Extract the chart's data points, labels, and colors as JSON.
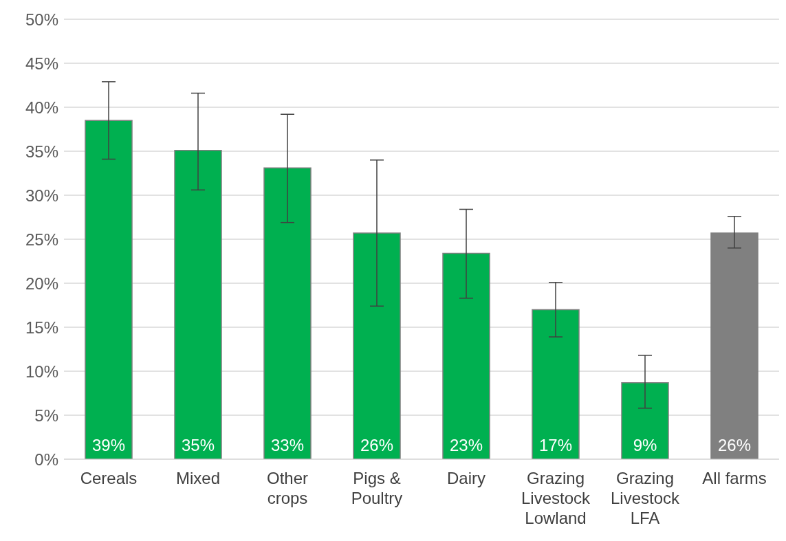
{
  "chart_data": {
    "type": "bar",
    "categories": [
      "Cereals",
      "Mixed",
      "Other crops",
      "Pigs & Poultry",
      "Dairy",
      "Grazing Livestock Lowland",
      "Grazing Livestock LFA",
      "All farms"
    ],
    "values": [
      38.5,
      35.1,
      33.1,
      25.7,
      23.4,
      17.0,
      8.7,
      25.7
    ],
    "errors": [
      [
        34.1,
        42.9
      ],
      [
        30.6,
        41.6
      ],
      [
        26.9,
        39.2
      ],
      [
        17.4,
        34.0
      ],
      [
        18.3,
        28.4
      ],
      [
        13.9,
        20.1
      ],
      [
        5.8,
        11.8
      ],
      [
        24.0,
        27.6
      ]
    ],
    "colors": [
      "#00b050",
      "#00b050",
      "#00b050",
      "#00b050",
      "#00b050",
      "#00b050",
      "#00b050",
      "#808080"
    ],
    "value_labels": [
      "39%",
      "35%",
      "33%",
      "26%",
      "23%",
      "17%",
      "9%",
      "26%"
    ],
    "ylim": [
      0,
      50
    ],
    "yticks": [
      {
        "value": 0,
        "label": "0%"
      },
      {
        "value": 5,
        "label": "5%"
      },
      {
        "value": 10,
        "label": "10%"
      },
      {
        "value": 15,
        "label": "15%"
      },
      {
        "value": 20,
        "label": "20%"
      },
      {
        "value": 25,
        "label": "25%"
      },
      {
        "value": 30,
        "label": "30%"
      },
      {
        "value": 35,
        "label": "35%"
      },
      {
        "value": 40,
        "label": "40%"
      },
      {
        "value": 45,
        "label": "45%"
      },
      {
        "value": 50,
        "label": "50%"
      }
    ],
    "grid": "y"
  }
}
